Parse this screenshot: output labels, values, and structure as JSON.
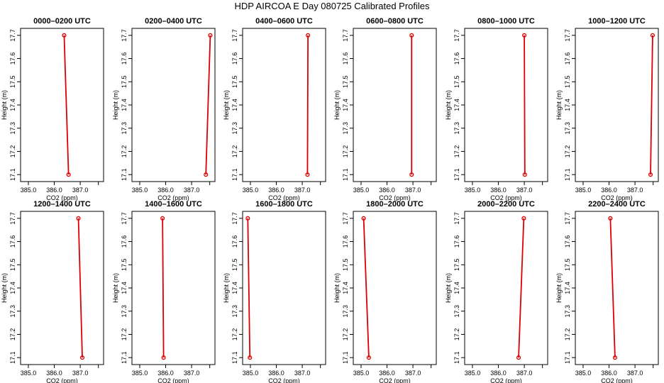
{
  "figure": {
    "title": "HDP AIRCOA E  Day 080725  Calibrated Profiles"
  },
  "colors": {
    "profile_line": "#dd0000",
    "marker": "#dd0000",
    "axis": "#000000"
  },
  "chart_data": [
    {
      "type": "line",
      "title": "0000–0200 UTC",
      "xlabel": "CO2 (ppm)",
      "ylabel": "Height (m)",
      "x": [
        386.55,
        386.38
      ],
      "y": [
        17.1,
        17.7
      ],
      "xlim": [
        384.7,
        387.9
      ],
      "ylim": [
        17.07,
        17.73
      ],
      "xticks": [
        385.0,
        386.0,
        387.0
      ],
      "xtick_labels": [
        "385.0",
        "386.0",
        "387.0"
      ],
      "yticks": [
        17.1,
        17.2,
        17.3,
        17.4,
        17.5,
        17.6,
        17.7
      ],
      "ytick_labels": [
        "17.1",
        "17.2",
        "17.3",
        "17.4",
        "17.5",
        "17.6",
        "17.7"
      ]
    },
    {
      "type": "line",
      "title": "0200–0400 UTC",
      "xlabel": "CO2 (ppm)",
      "ylabel": "Height (m)",
      "x": [
        387.55,
        387.72
      ],
      "y": [
        17.1,
        17.7
      ],
      "xlim": [
        384.7,
        387.9
      ],
      "ylim": [
        17.07,
        17.73
      ],
      "xticks": [
        385.0,
        386.0,
        387.0
      ],
      "xtick_labels": [
        "385.0",
        "386.0",
        "387.0"
      ],
      "yticks": [
        17.1,
        17.2,
        17.3,
        17.4,
        17.5,
        17.6,
        17.7
      ],
      "ytick_labels": [
        "17.1",
        "17.2",
        "17.3",
        "17.4",
        "17.5",
        "17.6",
        "17.7"
      ]
    },
    {
      "type": "line",
      "title": "0400–0600 UTC",
      "xlabel": "CO2 (ppm)",
      "ylabel": "Height (m)",
      "x": [
        387.2,
        387.22
      ],
      "y": [
        17.1,
        17.7
      ],
      "xlim": [
        384.7,
        387.9
      ],
      "ylim": [
        17.07,
        17.73
      ],
      "xticks": [
        385.0,
        386.0,
        387.0
      ],
      "xtick_labels": [
        "385.0",
        "386.0",
        "387.0"
      ],
      "yticks": [
        17.1,
        17.2,
        17.3,
        17.4,
        17.5,
        17.6,
        17.7
      ],
      "ytick_labels": [
        "17.1",
        "17.2",
        "17.3",
        "17.4",
        "17.5",
        "17.6",
        "17.7"
      ]
    },
    {
      "type": "line",
      "title": "0600–0800 UTC",
      "xlabel": "CO2 (ppm)",
      "ylabel": "Height (m)",
      "x": [
        386.95,
        386.95
      ],
      "y": [
        17.1,
        17.7
      ],
      "xlim": [
        384.7,
        387.9
      ],
      "ylim": [
        17.07,
        17.73
      ],
      "xticks": [
        385.0,
        386.0,
        387.0
      ],
      "xtick_labels": [
        "385.0",
        "386.0",
        "387.0"
      ],
      "yticks": [
        17.1,
        17.2,
        17.3,
        17.4,
        17.5,
        17.6,
        17.7
      ],
      "ytick_labels": [
        "17.1",
        "17.2",
        "17.3",
        "17.4",
        "17.5",
        "17.6",
        "17.7"
      ]
    },
    {
      "type": "line",
      "title": "0800–1000 UTC",
      "xlabel": "CO2 (ppm)",
      "ylabel": "Height (m)",
      "x": [
        387.02,
        387.0
      ],
      "y": [
        17.1,
        17.7
      ],
      "xlim": [
        384.7,
        387.9
      ],
      "ylim": [
        17.07,
        17.73
      ],
      "xticks": [
        385.0,
        386.0,
        387.0
      ],
      "xtick_labels": [
        "385.0",
        "386.0",
        "387.0"
      ],
      "yticks": [
        17.1,
        17.2,
        17.3,
        17.4,
        17.5,
        17.6,
        17.7
      ],
      "ytick_labels": [
        "17.1",
        "17.2",
        "17.3",
        "17.4",
        "17.5",
        "17.6",
        "17.7"
      ]
    },
    {
      "type": "line",
      "title": "1000–1200 UTC",
      "xlabel": "CO2 (ppm)",
      "ylabel": "Height (m)",
      "x": [
        387.6,
        387.68
      ],
      "y": [
        17.1,
        17.7
      ],
      "xlim": [
        384.7,
        387.9
      ],
      "ylim": [
        17.07,
        17.73
      ],
      "xticks": [
        385.0,
        386.0,
        387.0
      ],
      "xtick_labels": [
        "385.0",
        "386.0",
        "387.0"
      ],
      "yticks": [
        17.1,
        17.2,
        17.3,
        17.4,
        17.5,
        17.6,
        17.7
      ],
      "ytick_labels": [
        "17.1",
        "17.2",
        "17.3",
        "17.4",
        "17.5",
        "17.6",
        "17.7"
      ]
    },
    {
      "type": "line",
      "title": "1200–1400 UTC",
      "xlabel": "CO2 (ppm)",
      "ylabel": "Height (m)",
      "x": [
        387.08,
        386.93
      ],
      "y": [
        17.1,
        17.7
      ],
      "xlim": [
        384.7,
        387.9
      ],
      "ylim": [
        17.07,
        17.73
      ],
      "xticks": [
        385.0,
        386.0,
        387.0
      ],
      "xtick_labels": [
        "385.0",
        "386.0",
        "387.0"
      ],
      "yticks": [
        17.1,
        17.2,
        17.3,
        17.4,
        17.5,
        17.6,
        17.7
      ],
      "ytick_labels": [
        "17.1",
        "17.2",
        "17.3",
        "17.4",
        "17.5",
        "17.6",
        "17.7"
      ]
    },
    {
      "type": "line",
      "title": "1400–1600 UTC",
      "xlabel": "CO2 (ppm)",
      "ylabel": "Height (m)",
      "x": [
        385.92,
        385.88
      ],
      "y": [
        17.1,
        17.7
      ],
      "xlim": [
        384.7,
        387.9
      ],
      "ylim": [
        17.07,
        17.73
      ],
      "xticks": [
        385.0,
        386.0,
        387.0
      ],
      "xtick_labels": [
        "385.0",
        "386.0",
        "387.0"
      ],
      "yticks": [
        17.1,
        17.2,
        17.3,
        17.4,
        17.5,
        17.6,
        17.7
      ],
      "ytick_labels": [
        "17.1",
        "17.2",
        "17.3",
        "17.4",
        "17.5",
        "17.6",
        "17.7"
      ]
    },
    {
      "type": "line",
      "title": "1600–1800 UTC",
      "xlabel": "CO2 (ppm)",
      "ylabel": "Height (m)",
      "x": [
        384.98,
        384.9
      ],
      "y": [
        17.1,
        17.7
      ],
      "xlim": [
        384.7,
        387.9
      ],
      "ylim": [
        17.07,
        17.73
      ],
      "xticks": [
        385.0,
        386.0,
        387.0
      ],
      "xtick_labels": [
        "385.0",
        "386.0",
        "387.0"
      ],
      "yticks": [
        17.1,
        17.2,
        17.3,
        17.4,
        17.5,
        17.6,
        17.7
      ],
      "ytick_labels": [
        "17.1",
        "17.2",
        "17.3",
        "17.4",
        "17.5",
        "17.6",
        "17.7"
      ]
    },
    {
      "type": "line",
      "title": "1800–2000 UTC",
      "xlabel": "CO2 (ppm)",
      "ylabel": "Height (m)",
      "x": [
        385.3,
        385.1
      ],
      "y": [
        17.1,
        17.7
      ],
      "xlim": [
        384.7,
        387.9
      ],
      "ylim": [
        17.07,
        17.73
      ],
      "xticks": [
        385.0,
        386.0,
        387.0
      ],
      "xtick_labels": [
        "385.0",
        "386.0",
        "387.0"
      ],
      "yticks": [
        17.1,
        17.2,
        17.3,
        17.4,
        17.5,
        17.6,
        17.7
      ],
      "ytick_labels": [
        "17.1",
        "17.2",
        "17.3",
        "17.4",
        "17.5",
        "17.6",
        "17.7"
      ]
    },
    {
      "type": "line",
      "title": "2000–2200 UTC",
      "xlabel": "CO2 (ppm)",
      "ylabel": "Height (m)",
      "x": [
        386.78,
        386.98
      ],
      "y": [
        17.1,
        17.7
      ],
      "xlim": [
        384.7,
        387.9
      ],
      "ylim": [
        17.07,
        17.73
      ],
      "xticks": [
        385.0,
        386.0,
        387.0
      ],
      "xtick_labels": [
        "385.0",
        "386.0",
        "387.0"
      ],
      "yticks": [
        17.1,
        17.2,
        17.3,
        17.4,
        17.5,
        17.6,
        17.7
      ],
      "ytick_labels": [
        "17.1",
        "17.2",
        "17.3",
        "17.4",
        "17.5",
        "17.6",
        "17.7"
      ]
    },
    {
      "type": "line",
      "title": "2200–2400 UTC",
      "xlabel": "CO2 (ppm)",
      "ylabel": "Height (m)",
      "x": [
        386.23,
        386.05
      ],
      "y": [
        17.1,
        17.7
      ],
      "xlim": [
        384.7,
        387.9
      ],
      "ylim": [
        17.07,
        17.73
      ],
      "xticks": [
        385.0,
        386.0,
        387.0
      ],
      "xtick_labels": [
        "385.0",
        "386.0",
        "387.0"
      ],
      "yticks": [
        17.1,
        17.2,
        17.3,
        17.4,
        17.5,
        17.6,
        17.7
      ],
      "ytick_labels": [
        "17.1",
        "17.2",
        "17.3",
        "17.4",
        "17.5",
        "17.6",
        "17.7"
      ]
    }
  ]
}
